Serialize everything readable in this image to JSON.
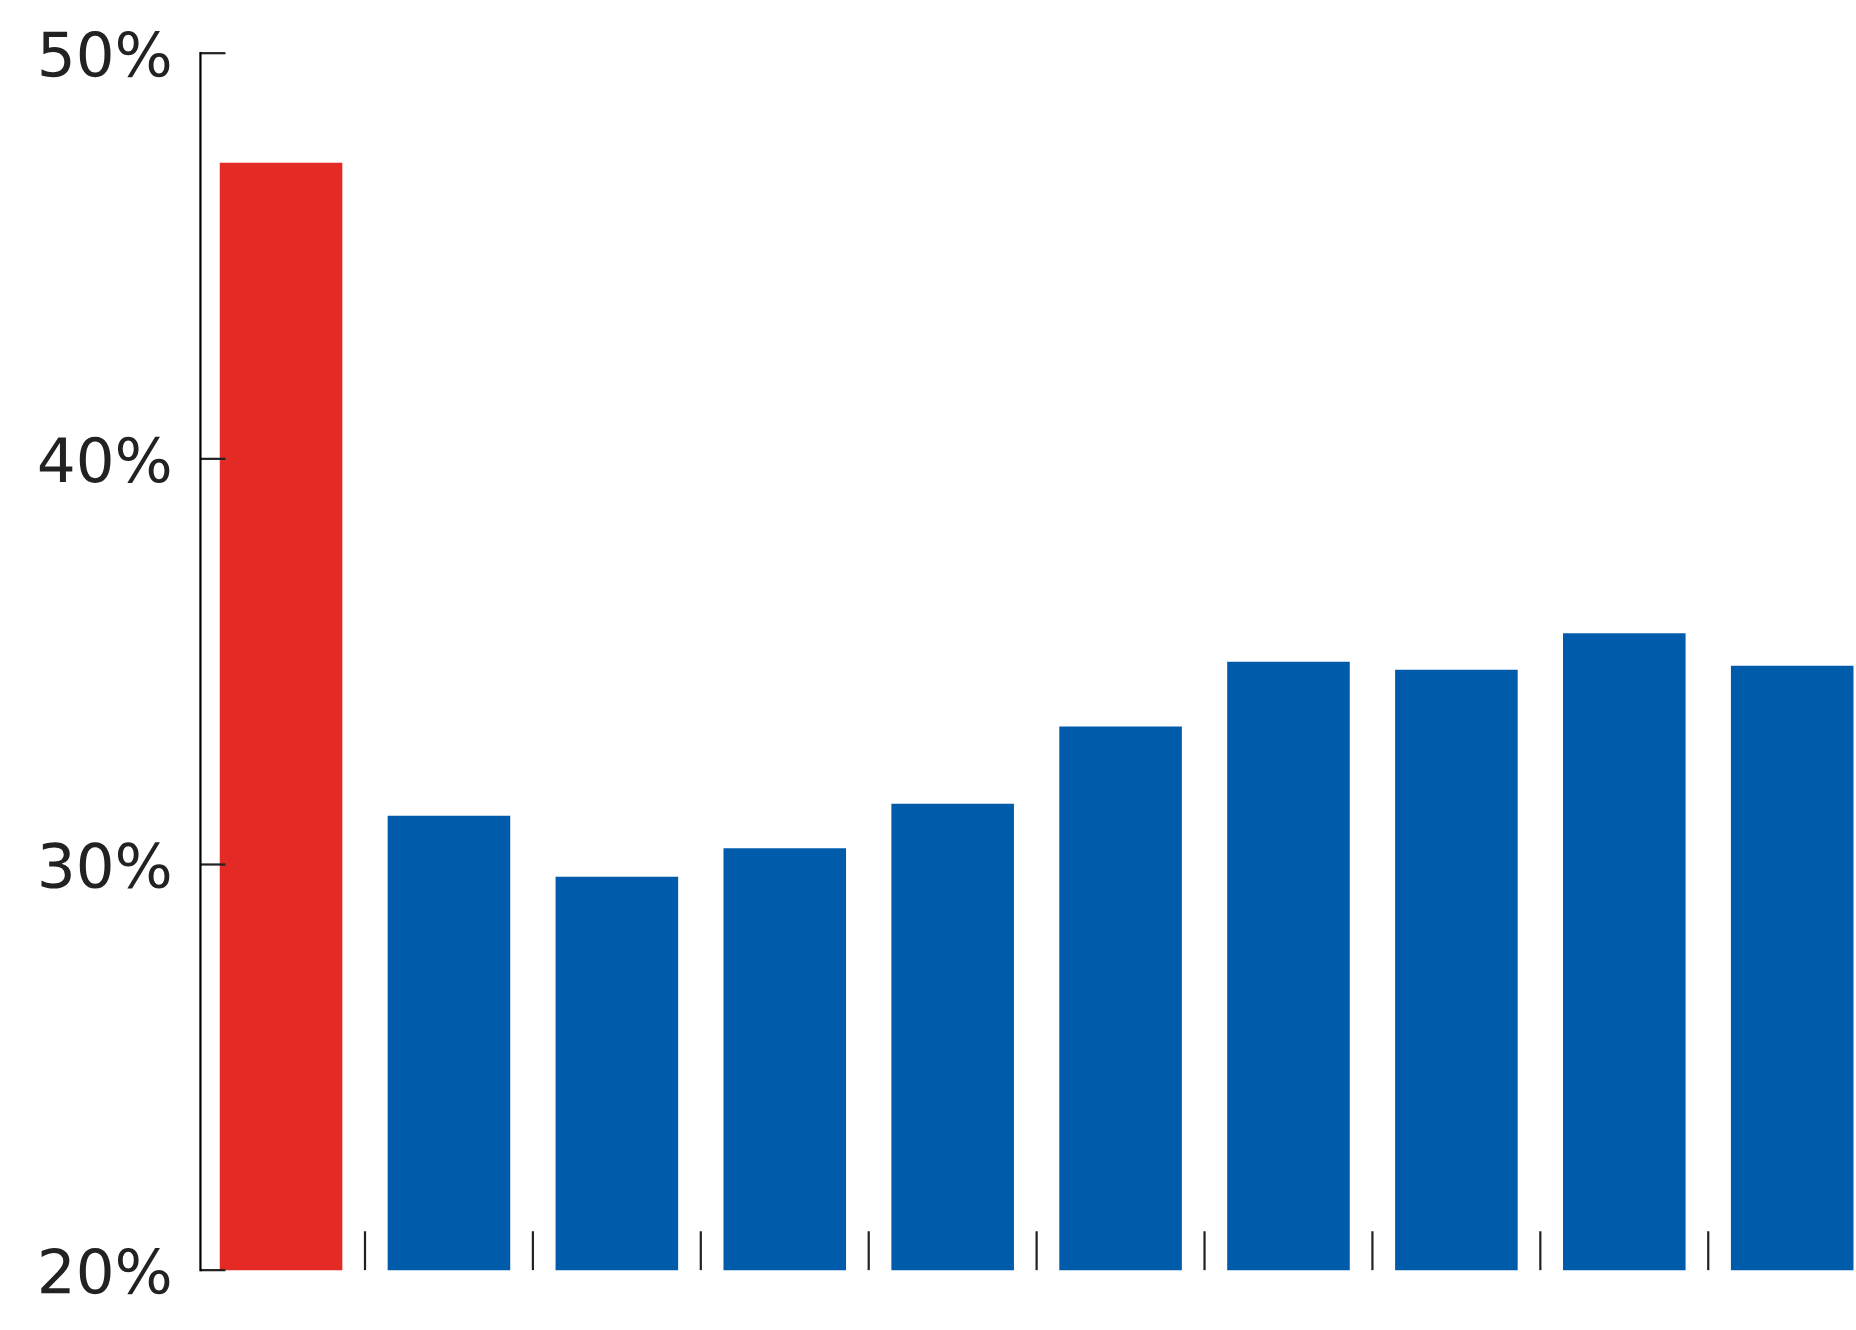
{
  "chart_data": {
    "type": "bar",
    "categories": [
      null,
      null,
      null,
      null,
      null,
      null,
      null,
      null,
      null,
      null
    ],
    "values": [
      47.3,
      31.2,
      29.7,
      30.4,
      31.5,
      33.4,
      35.0,
      34.8,
      35.7,
      34.9
    ],
    "colors": [
      "#e32a24",
      "#005bab",
      "#005bab",
      "#005bab",
      "#005bab",
      "#005bab",
      "#005bab",
      "#005bab",
      "#005bab",
      "#005bab"
    ],
    "ylim": [
      20,
      50
    ],
    "yticks": [
      {
        "value": 20,
        "label": "20%"
      },
      {
        "value": 30,
        "label": "30%"
      },
      {
        "value": 40,
        "label": "40%"
      },
      {
        "value": 50,
        "label": "50%"
      }
    ],
    "grid": false
  }
}
